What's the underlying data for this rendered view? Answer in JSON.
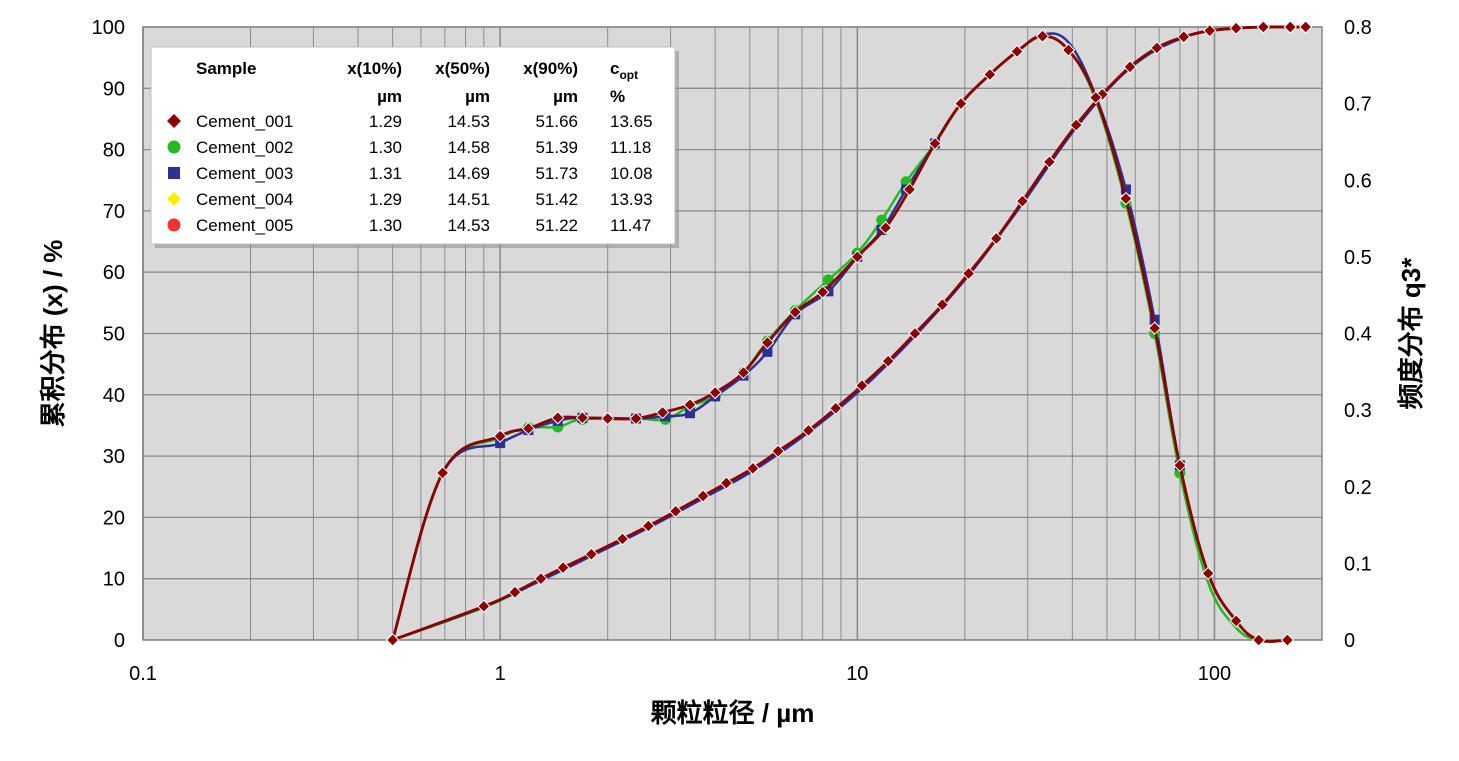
{
  "chart_data": {
    "type": "line",
    "xlabel": "颗粒粒径 / µm",
    "ylabel": "累积分布 (x) / %",
    "y2label": "频度分布 q3*",
    "x_scale": "log",
    "xlim": [
      0.1,
      200
    ],
    "x_ticks": [
      0.1,
      1,
      10,
      100
    ],
    "x_tick_labels": [
      "0.1",
      "1",
      "10",
      "100"
    ],
    "ylim": [
      0,
      100
    ],
    "y_ticks": [
      0,
      10,
      20,
      30,
      40,
      50,
      60,
      70,
      80,
      90,
      100
    ],
    "y_tick_labels": [
      "0",
      "10",
      "20",
      "30",
      "40",
      "50",
      "60",
      "70",
      "80",
      "90",
      "100"
    ],
    "y2lim": [
      0,
      0.8
    ],
    "y2_ticks": [
      0,
      0.1,
      0.2,
      0.3,
      0.4,
      0.5,
      0.6,
      0.7,
      0.8
    ],
    "y2_tick_labels": [
      "0",
      "0.1",
      "0.2",
      "0.3",
      "0.4",
      "0.5",
      "0.6",
      "0.7",
      "0.8"
    ],
    "grid": true,
    "background": "#d9d9d9",
    "legend_position": "top-left",
    "legend": {
      "headers": {
        "sample": "Sample",
        "x10": "x(10%)",
        "x50": "x(50%)",
        "x90": "x(90%)",
        "copt_main": "c",
        "copt_sub": "opt"
      },
      "units": {
        "x10": "µm",
        "x50": "µm",
        "x90": "µm",
        "copt": "%"
      },
      "rows": [
        {
          "name": "Cement_001",
          "x10": "1.29",
          "x50": "14.53",
          "x90": "51.66",
          "copt": "13.65",
          "marker": "diamond",
          "color": "#8b0000"
        },
        {
          "name": "Cement_002",
          "x10": "1.30",
          "x50": "14.58",
          "x90": "51.39",
          "copt": "11.18",
          "marker": "circle",
          "color": "#22bb22"
        },
        {
          "name": "Cement_003",
          "x10": "1.31",
          "x50": "14.69",
          "x90": "51.73",
          "copt": "10.08",
          "marker": "square",
          "color": "#2e3192"
        },
        {
          "name": "Cement_004",
          "x10": "1.29",
          "x50": "14.51",
          "x90": "51.42",
          "copt": "13.93",
          "marker": "diamond",
          "color": "#ffee00"
        },
        {
          "name": "Cement_005",
          "x10": "1.30",
          "x50": "14.53",
          "x90": "51.22",
          "copt": "11.47",
          "marker": "circle",
          "color": "#ee3333"
        }
      ]
    },
    "cumulative_points": [
      [
        0.5,
        0
      ],
      [
        0.9,
        5.5
      ],
      [
        1.1,
        7.8
      ],
      [
        1.3,
        10
      ],
      [
        1.5,
        11.8
      ],
      [
        1.8,
        14
      ],
      [
        2.2,
        16.5
      ],
      [
        2.6,
        18.6
      ],
      [
        3.1,
        21
      ],
      [
        3.7,
        23.5
      ],
      [
        4.3,
        25.6
      ],
      [
        5.1,
        28
      ],
      [
        6.0,
        30.8
      ],
      [
        7.3,
        34.2
      ],
      [
        8.7,
        37.8
      ],
      [
        10.3,
        41.5
      ],
      [
        12.2,
        45.5
      ],
      [
        14.5,
        50
      ],
      [
        17.3,
        54.7
      ],
      [
        20.5,
        59.8
      ],
      [
        24.5,
        65.5
      ],
      [
        29,
        71.6
      ],
      [
        34.5,
        78
      ],
      [
        41,
        84
      ],
      [
        48.5,
        89
      ],
      [
        58,
        93.5
      ],
      [
        69,
        96.6
      ],
      [
        82,
        98.4
      ],
      [
        97,
        99.4
      ],
      [
        115,
        99.8
      ],
      [
        137,
        100
      ],
      [
        163,
        100
      ],
      [
        180,
        100
      ]
    ],
    "density_points": [
      [
        0.5,
        0
      ],
      [
        0.69,
        0.218
      ],
      [
        1.0,
        0.266
      ],
      [
        1.2,
        0.276
      ],
      [
        1.45,
        0.29
      ],
      [
        1.7,
        0.29
      ],
      [
        2.0,
        0.289
      ],
      [
        2.4,
        0.289
      ],
      [
        2.85,
        0.297
      ],
      [
        3.4,
        0.307
      ],
      [
        4.0,
        0.323
      ],
      [
        4.8,
        0.349
      ],
      [
        5.6,
        0.388
      ],
      [
        6.7,
        0.428
      ],
      [
        8.0,
        0.454
      ],
      [
        10.0,
        0.5
      ],
      [
        12.0,
        0.538
      ],
      [
        14.0,
        0.588
      ],
      [
        16.5,
        0.648
      ],
      [
        19.5,
        0.7
      ],
      [
        23.5,
        0.738
      ],
      [
        28,
        0.768
      ],
      [
        33,
        0.788
      ],
      [
        39,
        0.77
      ],
      [
        46.5,
        0.708
      ],
      [
        56.5,
        0.576
      ],
      [
        68,
        0.407
      ],
      [
        80,
        0.228
      ],
      [
        96,
        0.087
      ],
      [
        115,
        0.025
      ],
      [
        133,
        0
      ],
      [
        160,
        0
      ]
    ],
    "series_variants": [
      {
        "name": "Cement_002",
        "cumulative_points": [
          [
            0.5,
            0
          ],
          [
            0.9,
            5.3
          ],
          [
            1.3,
            9.8
          ],
          [
            1.8,
            13.8
          ],
          [
            2.6,
            18.4
          ],
          [
            3.7,
            23.2
          ],
          [
            5.1,
            27.8
          ],
          [
            7.3,
            34.0
          ],
          [
            10.3,
            41.3
          ],
          [
            14.5,
            49.8
          ],
          [
            20.5,
            59.6
          ],
          [
            29,
            71.4
          ],
          [
            41,
            83.8
          ],
          [
            58,
            93.3
          ],
          [
            82,
            98.3
          ],
          [
            115,
            99.8
          ],
          [
            163,
            100
          ]
        ],
        "density_points": [
          [
            0.5,
            0
          ],
          [
            0.69,
            0.218
          ],
          [
            1.0,
            0.264
          ],
          [
            1.2,
            0.277
          ],
          [
            1.45,
            0.278
          ],
          [
            1.7,
            0.288
          ],
          [
            2.4,
            0.289
          ],
          [
            2.9,
            0.288
          ],
          [
            3.4,
            0.305
          ],
          [
            4.0,
            0.318
          ],
          [
            4.8,
            0.349
          ],
          [
            5.6,
            0.39
          ],
          [
            6.7,
            0.43
          ],
          [
            8.3,
            0.47
          ],
          [
            10.0,
            0.505
          ],
          [
            11.7,
            0.548
          ],
          [
            13.7,
            0.598
          ],
          [
            16.5,
            0.648
          ],
          [
            19.5,
            0.7
          ],
          [
            23.5,
            0.738
          ],
          [
            28,
            0.768
          ],
          [
            33,
            0.788
          ],
          [
            39,
            0.77
          ],
          [
            46.5,
            0.705
          ],
          [
            56.5,
            0.57
          ],
          [
            68,
            0.4
          ],
          [
            80,
            0.218
          ],
          [
            96,
            0.075
          ],
          [
            115,
            0.016
          ],
          [
            133,
            0
          ],
          [
            160,
            0
          ]
        ]
      },
      {
        "name": "Cement_003",
        "cumulative_points": [
          [
            0.5,
            0
          ],
          [
            0.9,
            5.4
          ],
          [
            1.3,
            9.7
          ],
          [
            1.8,
            13.7
          ],
          [
            2.6,
            18.3
          ],
          [
            3.7,
            23.1
          ],
          [
            5.1,
            27.6
          ],
          [
            7.3,
            33.9
          ],
          [
            10.3,
            41.0
          ],
          [
            14.5,
            49.6
          ],
          [
            20.5,
            59.5
          ],
          [
            29,
            71.2
          ],
          [
            41,
            83.6
          ],
          [
            58,
            93.3
          ],
          [
            82,
            98.3
          ],
          [
            115,
            99.8
          ],
          [
            163,
            100
          ]
        ],
        "density_points": [
          [
            0.5,
            0
          ],
          [
            0.69,
            0.218
          ],
          [
            1.0,
            0.257
          ],
          [
            1.2,
            0.274
          ],
          [
            1.45,
            0.286
          ],
          [
            1.7,
            0.29
          ],
          [
            2.4,
            0.289
          ],
          [
            2.9,
            0.292
          ],
          [
            3.4,
            0.296
          ],
          [
            4.0,
            0.318
          ],
          [
            4.8,
            0.345
          ],
          [
            5.6,
            0.376
          ],
          [
            6.7,
            0.425
          ],
          [
            8.3,
            0.455
          ],
          [
            10.0,
            0.5
          ],
          [
            11.7,
            0.535
          ],
          [
            13.7,
            0.588
          ],
          [
            16.5,
            0.648
          ],
          [
            19.5,
            0.7
          ],
          [
            23.5,
            0.738
          ],
          [
            28,
            0.768
          ],
          [
            33,
            0.79
          ],
          [
            39,
            0.78
          ],
          [
            46.5,
            0.71
          ],
          [
            56.5,
            0.588
          ],
          [
            68,
            0.418
          ],
          [
            80,
            0.228
          ],
          [
            96,
            0.087
          ],
          [
            115,
            0.025
          ],
          [
            133,
            0
          ],
          [
            160,
            0
          ]
        ]
      }
    ]
  }
}
